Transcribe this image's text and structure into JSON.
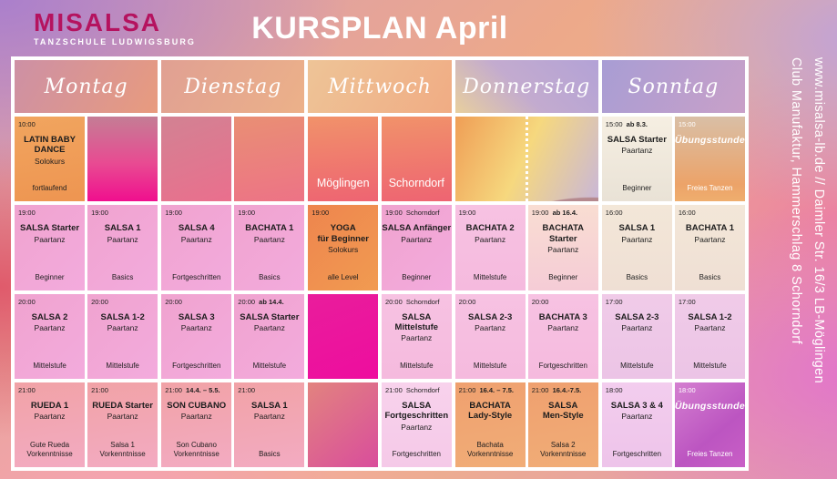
{
  "brand": {
    "name": "MISALSA",
    "tagline": "TANZSCHULE LUDWIGSBURG",
    "color": "#b5135f"
  },
  "title": "KURSPLAN April",
  "sidebar": {
    "lines": [
      "www.misalsa-lb.de // Daimler Str. 16/3 LB-Möglingen",
      "Club Manufaktur, Hammerschlag 8 Schorndorf"
    ]
  },
  "palette": {
    "border_white": "#ffffff",
    "text_dark": "#1d1d1d",
    "text_white": "#ffffff",
    "accent_magenta": "#f00f8e"
  },
  "days": [
    {
      "name": "Montag",
      "header_style": "h-mon",
      "rows": [
        {
          "divider": "dotted",
          "left": {
            "time": "10:00",
            "title": "LATIN BABY\nDANCE",
            "subtitle": "Solokurs",
            "level": "fortlaufend",
            "style": "c-orange"
          },
          "right": {
            "style": "c-magenta-grad"
          }
        },
        {
          "divider": "dotted",
          "left": {
            "time": "19:00",
            "title": "SALSA Starter",
            "subtitle": "Paartanz",
            "level": "Beginner",
            "style": "c-pink"
          },
          "right": {
            "time": "19:00",
            "title": "SALSA 1",
            "subtitle": "Paartanz",
            "level": "Basics",
            "style": "c-pink"
          }
        },
        {
          "divider": "dotted",
          "left": {
            "time": "20:00",
            "title": "SALSA 2",
            "subtitle": "Paartanz",
            "level": "Mittelstufe",
            "style": "c-pink"
          },
          "right": {
            "time": "20:00",
            "title": "SALSA 1-2",
            "subtitle": "Paartanz",
            "level": "Mittelstufe",
            "style": "c-pink"
          }
        },
        {
          "divider": "dotted",
          "left": {
            "time": "21:00",
            "title": "RUEDA 1",
            "subtitle": "Paartanz",
            "level": "Gute Rueda\nVorkenntnisse",
            "style": "c-rose"
          },
          "right": {
            "time": "21:00",
            "title": "RUEDA Starter",
            "subtitle": "Paartanz",
            "level": "Salsa 1\nVorkenntnisse",
            "style": "c-rose"
          }
        }
      ]
    },
    {
      "name": "Dienstag",
      "header_style": "h-tue",
      "rows": [
        {
          "divider": "dotted",
          "left": {
            "style": "c-pinkmauve"
          },
          "right": {
            "style": "c-salmonpink"
          }
        },
        {
          "divider": "dotted",
          "left": {
            "time": "19:00",
            "title": "SALSA 4",
            "subtitle": "Paartanz",
            "level": "Fortgeschritten",
            "style": "c-pink"
          },
          "right": {
            "time": "19:00",
            "title": "BACHATA 1",
            "subtitle": "Paartanz",
            "level": "Basics",
            "style": "c-pink"
          }
        },
        {
          "divider": "dotted",
          "left": {
            "time": "20:00",
            "title": "SALSA 3",
            "subtitle": "Paartanz",
            "level": "Fortgeschritten",
            "style": "c-pink"
          },
          "right": {
            "time": "20:00",
            "note": "ab 14.4.",
            "note_bold": true,
            "title": "SALSA Starter",
            "subtitle": "Paartanz",
            "level": "Mittelstufe",
            "style": "c-pink"
          }
        },
        {
          "divider": "dotted",
          "left": {
            "time": "21:00",
            "note": "14.4. – 5.5.",
            "note_bold": true,
            "title": "SON CUBANO",
            "subtitle": "Paartanz",
            "level": "Son Cubano\nVorkenntnisse",
            "style": "c-rose"
          },
          "right": {
            "time": "21:00",
            "title": "SALSA 1",
            "subtitle": "Paartanz",
            "level": "Basics",
            "style": "c-rose"
          }
        }
      ]
    },
    {
      "name": "Mittwoch",
      "header_style": "h-wed",
      "rows": [
        {
          "divider": "solid",
          "left": {
            "location": "Möglingen",
            "style": "c-redorange",
            "white": true
          },
          "right": {
            "location": "Schorndorf",
            "style": "c-redorange",
            "white": true
          }
        },
        {
          "divider": "solid",
          "left": {
            "time": "19:00",
            "title": "YOGA\nfür Beginner",
            "subtitle": "Solokurs",
            "level": "alle Level",
            "style": "c-orange2"
          },
          "right": {
            "time": "19:00",
            "note": "Schorndorf",
            "title": "SALSA Anfänger",
            "subtitle": "Paartanz",
            "level": "Beginner",
            "style": "c-pink"
          }
        },
        {
          "divider": "solid",
          "left": {
            "style": "c-magenta-solid"
          },
          "right": {
            "time": "20:00",
            "note": "Schorndorf",
            "title": "SALSA\nMittelstufe",
            "subtitle": "Paartanz",
            "level": "Mittelstufe",
            "style": "c-pinklight"
          }
        },
        {
          "divider": "solid",
          "left": {
            "style": "c-pinkmag"
          },
          "right": {
            "time": "21:00",
            "note": "Schorndorf",
            "title": "SALSA\nFortgeschritten",
            "subtitle": "Paartanz",
            "level": "Fortgeschritten",
            "style": "c-pinkpale"
          }
        }
      ]
    },
    {
      "name": "Donnerstag",
      "header_style": "h-thu",
      "rows": [
        {
          "divider": "dotted",
          "cell_style": "c-sunset",
          "left": {},
          "right": {}
        },
        {
          "divider": "dotted",
          "left": {
            "time": "19:00",
            "title": "BACHATA 2",
            "subtitle": "Paartanz",
            "level": "Mittelstufe",
            "style": "c-pinklight"
          },
          "right": {
            "time": "19:00",
            "note": "ab 16.4.",
            "note_bold": true,
            "title": "BACHATA\nStarter",
            "subtitle": "Paartanz",
            "level": "Beginner",
            "style": "c-peachlight"
          }
        },
        {
          "divider": "dotted",
          "left": {
            "time": "20:00",
            "title": "SALSA 2-3",
            "subtitle": "Paartanz",
            "level": "Mittelstufe",
            "style": "c-pinklight"
          },
          "right": {
            "time": "20:00",
            "title": "BACHATA 3",
            "subtitle": "Paartanz",
            "level": "Fortgeschritten",
            "style": "c-pinklight"
          }
        },
        {
          "divider": "dotted",
          "left": {
            "time": "21:00",
            "note": "16.4. – 7.5.",
            "note_bold": true,
            "title": "BACHATA\nLady-Style",
            "level": "Bachata\nVorkenntnisse",
            "style": "c-orange3"
          },
          "right": {
            "time": "21:00",
            "note": "16.4.-7.5.",
            "note_bold": true,
            "title": "SALSA\nMen-Style",
            "level": "Salsa 2\nVorkenntnisse",
            "style": "c-orange3"
          }
        }
      ]
    },
    {
      "name": "Sonntag",
      "header_style": "h-sun",
      "rows": [
        {
          "divider": "dotted",
          "left": {
            "time": "15:00",
            "note": "ab 8.3.",
            "note_bold": true,
            "title": "SALSA Starter",
            "subtitle": "Paartanz",
            "level": "Beginner",
            "style": "c-cream"
          },
          "right": {
            "time": "15:00",
            "title": "Übungsstunde",
            "title_italic": true,
            "level": "Freies Tanzen",
            "style": "c-tanorange",
            "white": true
          }
        },
        {
          "divider": "dotted",
          "left": {
            "time": "16:00",
            "title": "SALSA 1",
            "subtitle": "Paartanz",
            "level": "Basics",
            "style": "c-cream2"
          },
          "right": {
            "time": "16:00",
            "title": "BACHATA 1",
            "subtitle": "Paartanz",
            "level": "Basics",
            "style": "c-cream2"
          }
        },
        {
          "divider": "dotted",
          "left": {
            "time": "17:00",
            "title": "SALSA 2-3",
            "subtitle": "Paartanz",
            "level": "Mittelstufe",
            "style": "c-pinklav"
          },
          "right": {
            "time": "17:00",
            "title": "SALSA 1-2",
            "subtitle": "Paartanz",
            "level": "Mittelstufe",
            "style": "c-pinklav"
          }
        },
        {
          "divider": "dotted",
          "left": {
            "time": "18:00",
            "title": "SALSA 3 & 4",
            "subtitle": "Paartanz",
            "level": "Fortgeschritten",
            "style": "c-lavpink"
          },
          "right": {
            "time": "18:00",
            "title": "Übungsstunde",
            "title_italic": true,
            "level": "Freies Tanzen",
            "style": "c-purple",
            "white": true
          }
        }
      ]
    }
  ]
}
